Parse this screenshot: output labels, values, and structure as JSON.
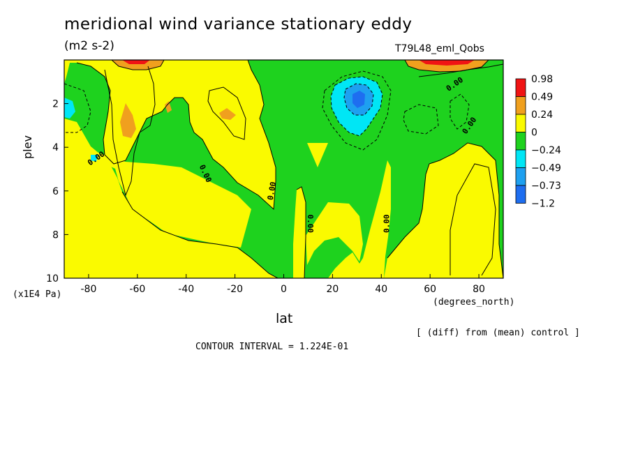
{
  "header": {
    "title": "meridional wind variance  stationary eddy",
    "units": "(m2 s-2)",
    "run": "T79L48_eml_Qobs"
  },
  "footer": {
    "diff_note": "[ (diff) from (mean) control ]",
    "contour_interval": "CONTOUR INTERVAL = 1.224E-01"
  },
  "colors": {
    "red": "#f01414",
    "orange": "#f0a01e",
    "yellow": "#fafa00",
    "green": "#1ed21e",
    "cyan": "#00e6f5",
    "blue_light": "#1ea0f0",
    "blue": "#1e6ef0"
  },
  "chart_data": {
    "type": "contour",
    "xlabel": "lat",
    "xunit": "(degrees_north)",
    "ylabel": "plev",
    "yunit": "(x1E4 Pa)",
    "xlim": [
      -90,
      90
    ],
    "ylim": [
      10,
      0
    ],
    "x_ticks": [
      {
        "value": -80,
        "label": "-80"
      },
      {
        "value": -60,
        "label": "-60"
      },
      {
        "value": -40,
        "label": "-40"
      },
      {
        "value": -20,
        "label": "-20"
      },
      {
        "value": 0,
        "label": "0"
      },
      {
        "value": 20,
        "label": "20"
      },
      {
        "value": 40,
        "label": "40"
      },
      {
        "value": 60,
        "label": "60"
      },
      {
        "value": 80,
        "label": "80"
      }
    ],
    "y_ticks": [
      {
        "value": 2,
        "label": "2"
      },
      {
        "value": 4,
        "label": "4"
      },
      {
        "value": 6,
        "label": "6"
      },
      {
        "value": 8,
        "label": "8"
      },
      {
        "value": 10,
        "label": "10"
      }
    ],
    "legend": [
      {
        "label": "0.98",
        "color": "#f01414"
      },
      {
        "label": "0.49",
        "color": "#f0a01e"
      },
      {
        "label": "0.24",
        "color": "#fafa00"
      },
      {
        "label": "0",
        "color": "#1ed21e"
      },
      {
        "label": "−0.24",
        "color": "#00e6f5"
      },
      {
        "label": "−0.49",
        "color": "#1ea0f0"
      },
      {
        "label": "−0.73",
        "color": "#1e6ef0"
      },
      {
        "label": "−1.2",
        "color": ""
      }
    ],
    "zero_labels": [
      {
        "lat": -77,
        "plev": 4.5,
        "text": "0.00",
        "angle": -35
      },
      {
        "lat": -32,
        "plev": 5.2,
        "text": "0.00",
        "angle": 65
      },
      {
        "lat": -5,
        "plev": 6.0,
        "text": "0.00",
        "angle": -80
      },
      {
        "lat": 11,
        "plev": 7.5,
        "text": "0.00",
        "angle": 90
      },
      {
        "lat": 42,
        "plev": 7.5,
        "text": "0.00",
        "angle": -90
      },
      {
        "lat": 70,
        "plev": 1.1,
        "text": "0.00",
        "angle": -35
      },
      {
        "lat": 76,
        "plev": 3.0,
        "text": "0.00",
        "angle": -55
      }
    ]
  }
}
